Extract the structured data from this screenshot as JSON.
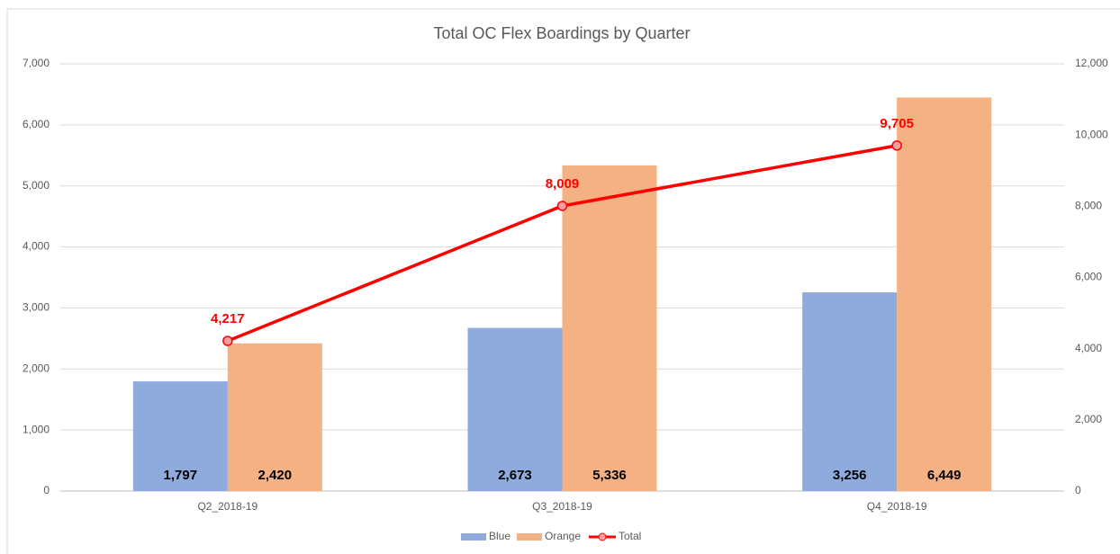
{
  "chart_data": {
    "type": "bar",
    "title": "Total OC Flex Boardings by Quarter",
    "categories": [
      "Q2_2018-19",
      "Q3_2018-19",
      "Q4_2018-19"
    ],
    "series": [
      {
        "name": "Blue",
        "color": "#8faadc",
        "values": [
          1797,
          2673,
          3256
        ],
        "value_labels": [
          "1,797",
          "2,673",
          "3,256"
        ]
      },
      {
        "name": "Orange",
        "color": "#f4b183",
        "values": [
          2420,
          5336,
          6449
        ],
        "value_labels": [
          "2,420",
          "5,336",
          "6,449"
        ]
      },
      {
        "name": "Total",
        "type": "line",
        "axis": "y2",
        "color": "#ff0000",
        "values": [
          4217,
          8009,
          9705
        ],
        "value_labels": [
          "4,217",
          "8,009",
          "9,705"
        ]
      }
    ],
    "ylim": [
      0,
      7000
    ],
    "yticks": [
      0,
      {
        "value": 1000,
        "label": "1,000"
      },
      {
        "value": 2000,
        "label": "2,000"
      },
      {
        "value": 3000,
        "label": "3,000"
      },
      {
        "value": 4000,
        "label": "4,000"
      },
      {
        "value": 5000,
        "label": "5,000"
      },
      {
        "value": 6000,
        "label": "6,000"
      },
      {
        "value": 7000,
        "label": "7,000"
      }
    ],
    "y2lim": [
      0,
      12000
    ],
    "y2ticks": [
      0,
      {
        "value": 2000,
        "label": "2,000"
      },
      {
        "value": 4000,
        "label": "4,000"
      },
      {
        "value": 6000,
        "label": "6,000"
      },
      {
        "value": 8000,
        "label": "8,000"
      },
      {
        "value": 10000,
        "label": "10,000"
      },
      {
        "value": 12000,
        "label": "12,000"
      }
    ],
    "grid": true,
    "legend": "bottom"
  }
}
